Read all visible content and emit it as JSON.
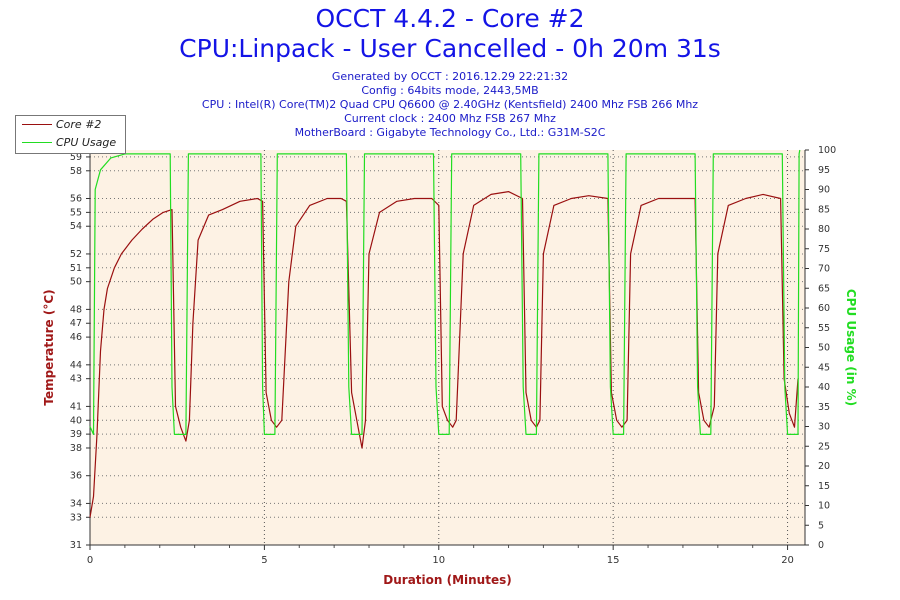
{
  "title": "OCCT 4.4.2 - Core #2",
  "subtitle": "CPU:Linpack - User Cancelled - 0h 20m 31s",
  "info_lines": [
    "Generated by OCCT : 2016.12.29 22:21:32",
    "Config : 64bits mode, 2443,5MB",
    "CPU : Intel(R) Core(TM)2 Quad CPU Q6600 @ 2.40GHz (Kentsfield) 2400 Mhz FSB 266 Mhz",
    "Current clock : 2400 Mhz FSB 267 Mhz",
    "MotherBoard : Gigabyte Technology Co., Ltd.: G31M-S2C"
  ],
  "colors": {
    "temperature": "#9a1010",
    "cpu_usage": "#22dd22",
    "plot_background": "#fdf2e4",
    "title": "#1414e6",
    "axis_title": "#a01818"
  },
  "chart_data": {
    "type": "line",
    "xlabel": "Duration (Minutes)",
    "ylabel_left": "Temperature (°C)",
    "ylabel_right": "CPU Usage (in %)",
    "xlim": [
      0,
      20.5
    ],
    "ylim_left": [
      31,
      59.5
    ],
    "ylim_right": [
      0,
      100
    ],
    "x_ticks": [
      0,
      5,
      10,
      15,
      20
    ],
    "y_left_ticks": [
      31,
      33,
      34,
      36,
      38,
      39,
      40,
      41,
      43,
      44,
      46,
      47,
      48,
      50,
      51,
      52,
      54,
      55,
      56,
      58,
      59
    ],
    "y_right_ticks": [
      0,
      5,
      10,
      15,
      20,
      25,
      30,
      35,
      40,
      45,
      50,
      55,
      60,
      65,
      70,
      75,
      80,
      85,
      90,
      95,
      100
    ],
    "grid": "dotted",
    "legend": "top-left",
    "series": [
      {
        "name": "Core #2",
        "axis": "left",
        "points": [
          [
            0.0,
            33.0
          ],
          [
            0.1,
            34.5
          ],
          [
            0.2,
            39.0
          ],
          [
            0.3,
            45.0
          ],
          [
            0.4,
            48.0
          ],
          [
            0.5,
            49.5
          ],
          [
            0.7,
            51.0
          ],
          [
            0.9,
            52.0
          ],
          [
            1.2,
            53.0
          ],
          [
            1.5,
            53.8
          ],
          [
            1.8,
            54.5
          ],
          [
            2.1,
            55.0
          ],
          [
            2.35,
            55.2
          ],
          [
            2.45,
            41.0
          ],
          [
            2.6,
            39.5
          ],
          [
            2.75,
            38.5
          ],
          [
            2.85,
            40.0
          ],
          [
            2.95,
            47.0
          ],
          [
            3.1,
            53.0
          ],
          [
            3.4,
            54.8
          ],
          [
            3.8,
            55.2
          ],
          [
            4.3,
            55.8
          ],
          [
            4.8,
            56.0
          ],
          [
            4.95,
            55.8
          ],
          [
            5.05,
            42.0
          ],
          [
            5.2,
            40.0
          ],
          [
            5.35,
            39.5
          ],
          [
            5.5,
            40.0
          ],
          [
            5.7,
            50.0
          ],
          [
            5.9,
            54.0
          ],
          [
            6.3,
            55.5
          ],
          [
            6.8,
            56.0
          ],
          [
            7.2,
            56.0
          ],
          [
            7.35,
            55.8
          ],
          [
            7.5,
            42.0
          ],
          [
            7.65,
            40.0
          ],
          [
            7.8,
            38.0
          ],
          [
            7.9,
            40.0
          ],
          [
            8.0,
            52.0
          ],
          [
            8.3,
            55.0
          ],
          [
            8.8,
            55.8
          ],
          [
            9.3,
            56.0
          ],
          [
            9.8,
            56.0
          ],
          [
            10.0,
            55.5
          ],
          [
            10.1,
            41.0
          ],
          [
            10.25,
            40.0
          ],
          [
            10.4,
            39.5
          ],
          [
            10.5,
            40.0
          ],
          [
            10.7,
            52.0
          ],
          [
            11.0,
            55.5
          ],
          [
            11.5,
            56.3
          ],
          [
            12.0,
            56.5
          ],
          [
            12.4,
            56.0
          ],
          [
            12.5,
            42.0
          ],
          [
            12.65,
            40.0
          ],
          [
            12.8,
            39.5
          ],
          [
            12.9,
            40.0
          ],
          [
            13.0,
            52.0
          ],
          [
            13.3,
            55.5
          ],
          [
            13.8,
            56.0
          ],
          [
            14.3,
            56.2
          ],
          [
            14.85,
            56.0
          ],
          [
            14.95,
            42.0
          ],
          [
            15.1,
            40.0
          ],
          [
            15.25,
            39.5
          ],
          [
            15.4,
            40.0
          ],
          [
            15.5,
            52.0
          ],
          [
            15.8,
            55.5
          ],
          [
            16.3,
            56.0
          ],
          [
            16.8,
            56.0
          ],
          [
            17.35,
            56.0
          ],
          [
            17.45,
            42.0
          ],
          [
            17.6,
            40.0
          ],
          [
            17.75,
            39.5
          ],
          [
            17.9,
            41.0
          ],
          [
            18.0,
            52.0
          ],
          [
            18.3,
            55.5
          ],
          [
            18.8,
            56.0
          ],
          [
            19.3,
            56.3
          ],
          [
            19.8,
            56.0
          ],
          [
            19.9,
            43.0
          ],
          [
            20.05,
            40.5
          ],
          [
            20.2,
            39.5
          ],
          [
            20.3,
            43.0
          ]
        ]
      },
      {
        "name": "CPU Usage",
        "axis": "right",
        "points": [
          [
            0.0,
            30
          ],
          [
            0.1,
            28
          ],
          [
            0.15,
            90
          ],
          [
            0.3,
            95
          ],
          [
            0.6,
            98
          ],
          [
            1.0,
            99
          ],
          [
            2.3,
            99
          ],
          [
            2.35,
            40
          ],
          [
            2.42,
            28
          ],
          [
            2.75,
            28
          ],
          [
            2.82,
            99
          ],
          [
            4.9,
            99
          ],
          [
            4.95,
            40
          ],
          [
            5.0,
            28
          ],
          [
            5.3,
            28
          ],
          [
            5.37,
            99
          ],
          [
            7.35,
            99
          ],
          [
            7.42,
            40
          ],
          [
            7.5,
            28
          ],
          [
            7.8,
            28
          ],
          [
            7.87,
            99
          ],
          [
            9.85,
            99
          ],
          [
            9.92,
            40
          ],
          [
            10.0,
            28
          ],
          [
            10.3,
            28
          ],
          [
            10.37,
            99
          ],
          [
            12.35,
            99
          ],
          [
            12.42,
            40
          ],
          [
            12.5,
            28
          ],
          [
            12.8,
            28
          ],
          [
            12.87,
            99
          ],
          [
            14.85,
            99
          ],
          [
            14.92,
            40
          ],
          [
            15.0,
            28
          ],
          [
            15.3,
            28
          ],
          [
            15.37,
            99
          ],
          [
            17.35,
            99
          ],
          [
            17.42,
            40
          ],
          [
            17.5,
            28
          ],
          [
            17.8,
            28
          ],
          [
            17.87,
            99
          ],
          [
            19.85,
            99
          ],
          [
            19.92,
            40
          ],
          [
            20.0,
            28
          ],
          [
            20.3,
            28
          ],
          [
            20.33,
            99
          ],
          [
            20.35,
            100
          ]
        ]
      }
    ]
  }
}
